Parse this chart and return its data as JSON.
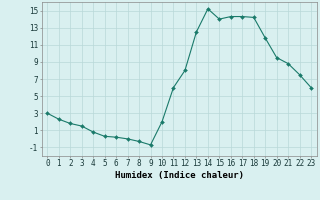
{
  "x": [
    0,
    1,
    2,
    3,
    4,
    5,
    6,
    7,
    8,
    9,
    10,
    11,
    12,
    13,
    14,
    15,
    16,
    17,
    18,
    19,
    20,
    21,
    22,
    23
  ],
  "y": [
    3,
    2.3,
    1.8,
    1.5,
    0.8,
    0.3,
    0.2,
    0.0,
    -0.3,
    -0.7,
    2.0,
    6.0,
    8.0,
    12.5,
    15.2,
    14.0,
    14.3,
    14.3,
    14.2,
    11.8,
    9.5,
    8.8,
    7.5,
    6.0
  ],
  "line_color": "#1a7a6a",
  "marker": "D",
  "marker_size": 2.0,
  "bg_color": "#d9f0f0",
  "grid_color": "#b8d8d8",
  "xlabel": "Humidex (Indice chaleur)",
  "xlim": [
    -0.5,
    23.5
  ],
  "ylim": [
    -2,
    16
  ],
  "yticks": [
    -1,
    1,
    3,
    5,
    7,
    9,
    11,
    13,
    15
  ],
  "xticks": [
    0,
    1,
    2,
    3,
    4,
    5,
    6,
    7,
    8,
    9,
    10,
    11,
    12,
    13,
    14,
    15,
    16,
    17,
    18,
    19,
    20,
    21,
    22,
    23
  ],
  "tick_fontsize": 5.5,
  "xlabel_fontsize": 6.5
}
